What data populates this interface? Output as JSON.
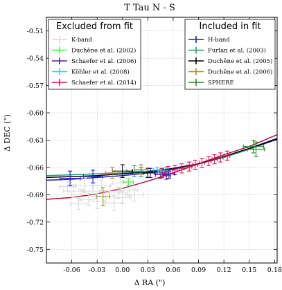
{
  "chart_data": {
    "type": "scatter",
    "title": "T Tau N - S",
    "xlabel": "Δ RA (\")",
    "ylabel": "Δ DEC (\")",
    "xlim": [
      -0.09,
      0.183
    ],
    "ylim": [
      -0.765,
      -0.495
    ],
    "x_ticks": [
      -0.06,
      -0.03,
      0.0,
      0.03,
      0.06,
      0.09,
      0.12,
      0.15,
      0.18
    ],
    "x_tick_labels": [
      "-0.06",
      "-0.03",
      "0.00",
      "0.03",
      "0.06",
      "0.09",
      "0.12",
      "0.15",
      "0.18"
    ],
    "y_ticks": [
      -0.75,
      -0.72,
      -0.69,
      -0.66,
      -0.63,
      -0.6,
      -0.57,
      -0.54,
      -0.51
    ],
    "y_tick_labels": [
      "-0.75",
      "-0.72",
      "-0.69",
      "-0.66",
      "-0.63",
      "-0.60",
      "-0.57",
      "-0.54",
      "-0.51"
    ],
    "grid": true,
    "legends": [
      {
        "title": "Excluded from fit",
        "placement": "top-left",
        "entries": [
          {
            "label": "K-band",
            "color": "#d9d9d9"
          },
          {
            "label": "Duchêne et al. (2002)",
            "color": "#33ff33"
          },
          {
            "label": "Schaefer et al. (2006)",
            "color": "#5a1a99"
          },
          {
            "label": "Köhler et al. (2008)",
            "color": "#22ccee"
          },
          {
            "label": "Schaefer et al. (2014)",
            "color": "#dd1155"
          }
        ]
      },
      {
        "title": "Included in fit",
        "placement": "top-right",
        "entries": [
          {
            "label": "H-band",
            "color": "#1a1acc"
          },
          {
            "label": "Furlan et al. (2003)",
            "color": "#1a9977"
          },
          {
            "label": "Duchêne et al. (2005)",
            "color": "#000000"
          },
          {
            "label": "Duchêne et al. (2006)",
            "color": "#a09020"
          },
          {
            "label": "SPHERE",
            "color": "#228822"
          }
        ]
      }
    ],
    "curves": [
      {
        "color": "#aa1133",
        "x": [
          -0.09,
          -0.06,
          -0.03,
          0.0,
          0.03,
          0.06,
          0.09,
          0.12,
          0.15,
          0.183
        ],
        "y": [
          -0.695,
          -0.693,
          -0.689,
          -0.683,
          -0.675,
          -0.666,
          -0.656,
          -0.646,
          -0.637,
          -0.624
        ]
      },
      {
        "color": "#1a1acc",
        "x": [
          -0.09,
          -0.06,
          -0.03,
          0.0,
          0.03,
          0.06,
          0.09,
          0.12,
          0.15,
          0.183
        ],
        "y": [
          -0.674,
          -0.673,
          -0.671,
          -0.669,
          -0.666,
          -0.662,
          -0.656,
          -0.648,
          -0.639,
          -0.628
        ]
      },
      {
        "color": "#1a9977",
        "x": [
          -0.09,
          -0.06,
          -0.03,
          0.0,
          0.03,
          0.06,
          0.09,
          0.12,
          0.15,
          0.183
        ],
        "y": [
          -0.669,
          -0.668,
          -0.667,
          -0.666,
          -0.664,
          -0.661,
          -0.656,
          -0.649,
          -0.64,
          -0.629
        ]
      },
      {
        "color": "#000000",
        "x": [
          -0.09,
          -0.06,
          -0.03,
          0.0,
          0.03,
          0.06,
          0.09,
          0.12,
          0.15,
          0.183
        ],
        "y": [
          -0.671,
          -0.67,
          -0.669,
          -0.667,
          -0.665,
          -0.661,
          -0.656,
          -0.648,
          -0.639,
          -0.629
        ]
      }
    ],
    "series": [
      {
        "color": "#d9d9d9",
        "points": [
          {
            "x": -0.065,
            "y": -0.681,
            "xerr": 0.01,
            "yerr": 0.006
          },
          {
            "x": -0.058,
            "y": -0.686,
            "xerr": 0.012,
            "yerr": 0.007
          },
          {
            "x": -0.05,
            "y": -0.69,
            "xerr": 0.01,
            "yerr": 0.006
          },
          {
            "x": -0.045,
            "y": -0.68,
            "xerr": 0.011,
            "yerr": 0.008
          },
          {
            "x": -0.04,
            "y": -0.695,
            "xerr": 0.01,
            "yerr": 0.007
          },
          {
            "x": -0.035,
            "y": -0.686,
            "xerr": 0.012,
            "yerr": 0.006
          },
          {
            "x": -0.03,
            "y": -0.697,
            "xerr": 0.01,
            "yerr": 0.008
          },
          {
            "x": -0.025,
            "y": -0.68,
            "xerr": 0.011,
            "yerr": 0.006
          },
          {
            "x": -0.02,
            "y": -0.692,
            "xerr": 0.01,
            "yerr": 0.007
          },
          {
            "x": -0.015,
            "y": -0.686,
            "xerr": 0.012,
            "yerr": 0.006
          },
          {
            "x": -0.01,
            "y": -0.699,
            "xerr": 0.01,
            "yerr": 0.008
          },
          {
            "x": -0.005,
            "y": -0.688,
            "xerr": 0.011,
            "yerr": 0.006
          },
          {
            "x": 0.0,
            "y": -0.693,
            "xerr": 0.01,
            "yerr": 0.007
          },
          {
            "x": 0.008,
            "y": -0.685,
            "xerr": 0.01,
            "yerr": 0.006
          },
          {
            "x": 0.014,
            "y": -0.69,
            "xerr": 0.011,
            "yerr": 0.007
          },
          {
            "x": -0.052,
            "y": -0.7,
            "xerr": 0.01,
            "yerr": 0.006
          },
          {
            "x": -0.002,
            "y": -0.677,
            "xerr": 0.01,
            "yerr": 0.006
          }
        ]
      },
      {
        "color": "#33ff33",
        "points": [
          {
            "x": 0.007,
            "y": -0.676,
            "xerr": 0.006,
            "yerr": 0.004
          }
        ]
      },
      {
        "color": "#5a1a99",
        "points": [
          {
            "x": 0.045,
            "y": -0.668,
            "xerr": 0.006,
            "yerr": 0.004
          },
          {
            "x": 0.052,
            "y": -0.669,
            "xerr": 0.005,
            "yerr": 0.004
          }
        ]
      },
      {
        "color": "#22ccee",
        "points": [
          {
            "x": 0.041,
            "y": -0.663,
            "xerr": 0.004,
            "yerr": 0.003
          },
          {
            "x": 0.046,
            "y": -0.664,
            "xerr": 0.004,
            "yerr": 0.003
          },
          {
            "x": 0.051,
            "y": -0.663,
            "xerr": 0.004,
            "yerr": 0.003
          }
        ]
      },
      {
        "color": "#dd1155",
        "points": [
          {
            "x": 0.047,
            "y": -0.666,
            "xerr": 0.003,
            "yerr": 0.005
          },
          {
            "x": 0.054,
            "y": -0.664,
            "xerr": 0.003,
            "yerr": 0.005
          },
          {
            "x": 0.062,
            "y": -0.663,
            "xerr": 0.003,
            "yerr": 0.005
          },
          {
            "x": 0.07,
            "y": -0.661,
            "xerr": 0.003,
            "yerr": 0.005
          },
          {
            "x": 0.079,
            "y": -0.659,
            "xerr": 0.003,
            "yerr": 0.005
          },
          {
            "x": 0.086,
            "y": -0.657,
            "xerr": 0.003,
            "yerr": 0.005
          },
          {
            "x": 0.094,
            "y": -0.655,
            "xerr": 0.003,
            "yerr": 0.005
          },
          {
            "x": 0.102,
            "y": -0.653,
            "xerr": 0.003,
            "yerr": 0.005
          },
          {
            "x": 0.109,
            "y": -0.651,
            "xerr": 0.003,
            "yerr": 0.005
          },
          {
            "x": 0.116,
            "y": -0.649,
            "xerr": 0.003,
            "yerr": 0.005
          },
          {
            "x": 0.124,
            "y": -0.647,
            "xerr": 0.003,
            "yerr": 0.005
          }
        ]
      },
      {
        "color": "#1a1acc",
        "points": [
          {
            "x": -0.062,
            "y": -0.672,
            "xerr": 0.012,
            "yerr": 0.008
          },
          {
            "x": -0.035,
            "y": -0.67,
            "xerr": 0.011,
            "yerr": 0.007
          },
          {
            "x": 0.033,
            "y": -0.666,
            "xerr": 0.008,
            "yerr": 0.005
          },
          {
            "x": 0.055,
            "y": -0.667,
            "xerr": 0.007,
            "yerr": 0.005
          }
        ]
      },
      {
        "color": "#1a9977",
        "points": [
          {
            "x": 0.014,
            "y": -0.664,
            "xerr": 0.009,
            "yerr": 0.006
          },
          {
            "x": 0.022,
            "y": -0.665,
            "xerr": 0.008,
            "yerr": 0.005
          }
        ]
      },
      {
        "color": "#000000",
        "points": [
          {
            "x": 0.0,
            "y": -0.664,
            "xerr": 0.012,
            "yerr": 0.007
          },
          {
            "x": 0.03,
            "y": -0.666,
            "xerr": 0.008,
            "yerr": 0.005
          }
        ]
      },
      {
        "color": "#a09020",
        "points": [
          {
            "x": -0.012,
            "y": -0.666,
            "xerr": 0.008,
            "yerr": 0.006
          },
          {
            "x": -0.023,
            "y": -0.692,
            "xerr": 0.008,
            "yerr": 0.01
          },
          {
            "x": 0.022,
            "y": -0.662,
            "xerr": 0.008,
            "yerr": 0.005
          }
        ]
      },
      {
        "color": "#228822",
        "points": [
          {
            "x": 0.155,
            "y": -0.637,
            "xerr": 0.012,
            "yerr": 0.007
          },
          {
            "x": 0.158,
            "y": -0.64,
            "xerr": 0.01,
            "yerr": 0.008
          }
        ]
      }
    ]
  }
}
